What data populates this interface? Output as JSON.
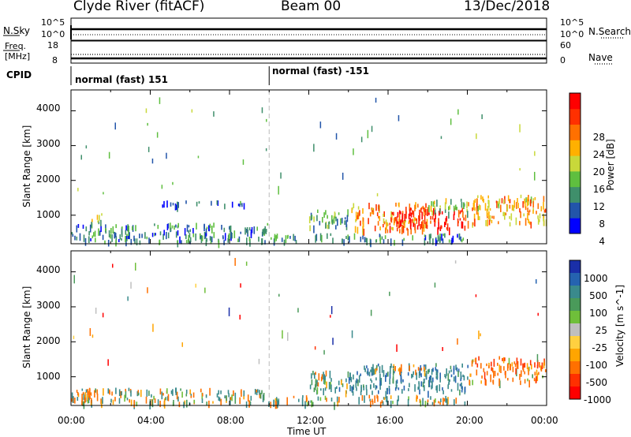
{
  "header": {
    "site": "Clyde River (fitACF)",
    "beam": "Beam 00",
    "date": "13/Dec/2018"
  },
  "noise_panel": {
    "left_label": "N.Sky",
    "right_label": "N.Search",
    "left_ticks": [
      "10^5",
      "10^0"
    ],
    "right_ticks": [
      "10^5",
      "10^0"
    ]
  },
  "freq_panel": {
    "left_label_1": "Freq.",
    "left_label_2": "[MHz]",
    "right_label": "Nave",
    "left_ticks": [
      "18",
      "8"
    ],
    "right_ticks": [
      "60",
      "0"
    ]
  },
  "cpid_panel": {
    "label": "CPID",
    "modes": [
      "normal (fast) 151",
      "normal (fast) -151"
    ]
  },
  "power_panel": {
    "ylabel": "Slant Range [km]",
    "yticks": [
      "4000",
      "3000",
      "2000",
      "1000"
    ],
    "colorbar_label": "Power [dB]",
    "colorbar_ticks": [
      "28",
      "24",
      "20",
      "16",
      "12",
      "8",
      "4"
    ],
    "colors": [
      "#0000ff",
      "#2255aa",
      "#3f8f6b",
      "#5fbf3f",
      "#c8d83a",
      "#ffb000",
      "#ff7000",
      "#ff3000",
      "#ff0000"
    ]
  },
  "velocity_panel": {
    "ylabel": "Slant Range [km]",
    "yticks": [
      "4000",
      "3000",
      "2000",
      "1000"
    ],
    "colorbar_label": "Velocity [m s^-1]",
    "colorbar_ticks": [
      "1000",
      "500",
      "100",
      "25",
      "-25",
      "-100",
      "-500",
      "-1000"
    ],
    "colors": [
      "#1a2fa8",
      "#2563b0",
      "#3a8a8c",
      "#4a9a5a",
      "#6fbf3a",
      "#bfbfbf",
      "#ffd040",
      "#ffa500",
      "#ff7000",
      "#ff3000",
      "#ff0000"
    ]
  },
  "xaxis": {
    "ticks": [
      "00:00",
      "04:00",
      "08:00",
      "12:00",
      "16:00",
      "20:00",
      "00:00"
    ],
    "label": "Time UT"
  },
  "chart_data": [
    {
      "type": "line",
      "title": "Clyde River (fitACF) Beam 00 13/Dec/2018",
      "series": [
        {
          "name": "N.Sky",
          "x": [
            "00:00",
            "24:00"
          ],
          "values": [
            1000,
            1000
          ]
        },
        {
          "name": "N.Search"
        }
      ],
      "xlim": [
        "00:00",
        "24:00"
      ],
      "ylabel": "N.Sky"
    },
    {
      "type": "line",
      "series": [
        {
          "name": "Freq.",
          "x": [
            "00:00",
            "24:00"
          ],
          "values": [
            10.5,
            10.5
          ]
        },
        {
          "name": "Nave",
          "x": [
            "00:00",
            "24:00"
          ],
          "values": [
            26,
            26
          ]
        }
      ],
      "ylim_left": [
        8,
        18
      ],
      "ylim_right": [
        0,
        60
      ]
    },
    {
      "type": "table",
      "series": [
        {
          "name": "CPID",
          "x": [
            "00:00",
            "10:00"
          ],
          "values": [
            "normal (fast) 151",
            "normal (fast) -151"
          ]
        }
      ]
    },
    {
      "type": "heatmap",
      "xlabel": "Time UT",
      "ylabel": "Slant Range [km]",
      "xlim": [
        "00:00",
        "24:00"
      ],
      "ylim": [
        180,
        4600
      ],
      "colorbar": {
        "label": "Power [dB]",
        "range": [
          0,
          32
        ],
        "ticks": [
          4,
          8,
          12,
          16,
          20,
          24,
          28
        ]
      },
      "regions": [
        {
          "t": [
            0.0,
            10.0
          ],
          "range_km": [
            180,
            700
          ],
          "value": 8
        },
        {
          "t": [
            1.0,
            1.7
          ],
          "range_km": [
            700,
            1000
          ],
          "value": 14
        },
        {
          "t": [
            4.5,
            8.8
          ],
          "range_km": [
            1200,
            1350
          ],
          "value": 6
        },
        {
          "t": [
            12.0,
            14.0
          ],
          "range_km": [
            600,
            1100
          ],
          "value": 10
        },
        {
          "t": [
            14.0,
            18.0
          ],
          "range_km": [
            500,
            1300
          ],
          "value": 22
        },
        {
          "t": [
            16.0,
            20.0
          ],
          "range_km": [
            550,
            1150
          ],
          "value": 29
        },
        {
          "t": [
            18.0,
            20.0
          ],
          "range_km": [
            1000,
            1400
          ],
          "value": 14
        },
        {
          "t": [
            20.0,
            24.0
          ],
          "range_km": [
            700,
            1500
          ],
          "value": 20
        },
        {
          "t": [
            10.0,
            20.0
          ],
          "range_km": [
            180,
            400
          ],
          "value": 8
        }
      ]
    },
    {
      "type": "heatmap",
      "xlabel": "Time UT",
      "ylabel": "Slant Range [km]",
      "xlim": [
        "00:00",
        "24:00"
      ],
      "ylim": [
        180,
        4600
      ],
      "colorbar": {
        "label": "Velocity [m s^-1]",
        "ticks": [
          1000,
          500,
          100,
          25,
          -25,
          -100,
          -500,
          -1000
        ]
      },
      "regions": [
        {
          "t": [
            0.0,
            10.0
          ],
          "range_km": [
            180,
            600
          ],
          "value": 50
        },
        {
          "t": [
            0.0,
            1.0
          ],
          "range_km": [
            200,
            700
          ],
          "value": -200
        },
        {
          "t": [
            12.0,
            14.0
          ],
          "range_km": [
            500,
            1100
          ],
          "value": 200
        },
        {
          "t": [
            14.0,
            20.0
          ],
          "range_km": [
            500,
            1300
          ],
          "value": 400
        },
        {
          "t": [
            15.0,
            18.0
          ],
          "range_km": [
            1100,
            1300
          ],
          "value": -150
        },
        {
          "t": [
            20.0,
            24.0
          ],
          "range_km": [
            800,
            1500
          ],
          "value": -300
        },
        {
          "t": [
            10.0,
            20.0
          ],
          "range_km": [
            180,
            400
          ],
          "value": 50
        }
      ]
    }
  ]
}
